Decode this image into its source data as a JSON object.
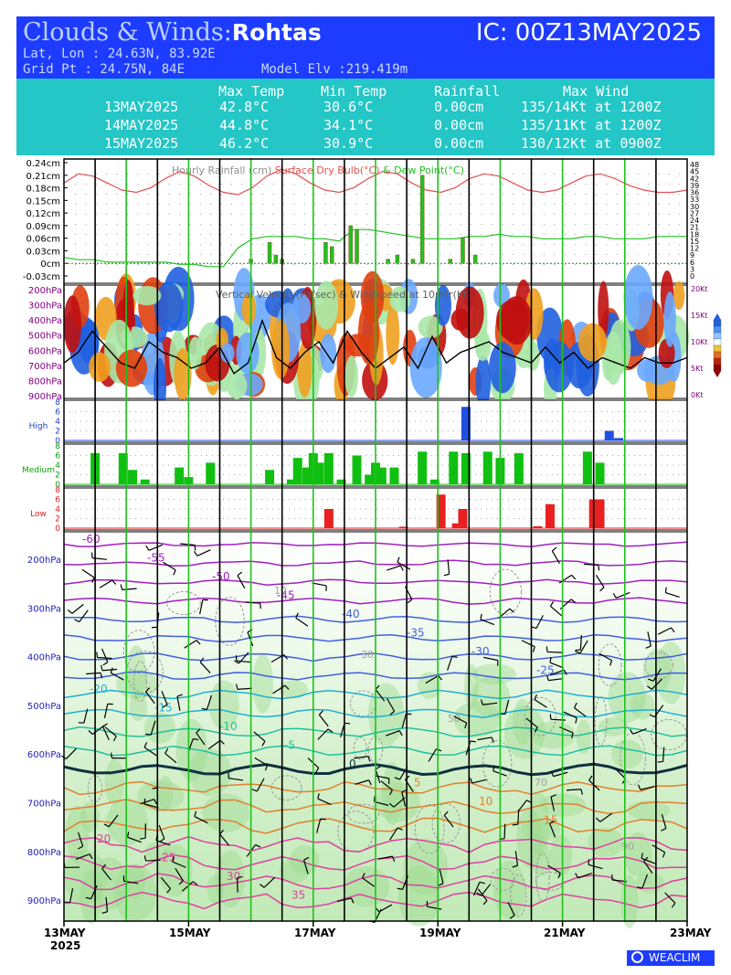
{
  "header": {
    "title_prefix": "Clouds & Winds:",
    "location": "Rohtas",
    "ic": "IC: 00Z13MAY2025",
    "latlon": "Lat, Lon : 24.63N, 83.92E",
    "gridpt": "Grid Pt  : 24.75N, 84E",
    "elevation": "Model Elv :219.419m"
  },
  "summary_table": {
    "headers": [
      "Max Temp",
      "Min Temp",
      "Rainfall",
      "Max Wind"
    ],
    "rows": [
      {
        "date": "13MAY2025",
        "max_temp": "42.8°C",
        "min_temp": "30.6°C",
        "rainfall": "0.00cm",
        "max_wind": "135/14Kt at 1200Z"
      },
      {
        "date": "14MAY2025",
        "max_temp": "44.8°C",
        "min_temp": "34.1°C",
        "rainfall": "0.00cm",
        "max_wind": "135/11Kt at 1200Z"
      },
      {
        "date": "15MAY2025",
        "max_temp": "46.2°C",
        "min_temp": "30.9°C",
        "rainfall": "0.00cm",
        "max_wind": "130/12Kt at 0900Z"
      }
    ]
  },
  "colors": {
    "header_bg": "#1e3cff",
    "table_bg": "#24c6c6",
    "temp": "#e05050",
    "dewpoint": "#20c020",
    "rain": "#20c020",
    "high": "#2050e0",
    "medium": "#10c010",
    "low": "#e82020",
    "day_line": "#000000",
    "noon_line": "#20c020",
    "accent_purple": "#9010c0"
  },
  "chart_data": [
    {
      "type": "line",
      "panel": "rainfall-temperature",
      "legend": [
        "Hourly Rainfall (cm)",
        "Surface Dry Bulb(°C)",
        "& Dew Point(°C)"
      ],
      "ylabel_ticks": [
        "0.24cm",
        "0.21cm",
        "0.18cm",
        "0.15cm",
        "0.12cm",
        "0.09cm",
        "0.06cm",
        "0.03cm",
        "0cm",
        "-0.03cm"
      ],
      "right_ticks": [
        "48",
        "45",
        "42",
        "39",
        "36",
        "33",
        "30",
        "27",
        "24",
        "21",
        "18",
        "15",
        "12",
        "9",
        "6",
        "3",
        "0"
      ],
      "y_range_cm": [
        -0.03,
        0.24
      ],
      "dry_bulb_c": [
        40,
        44,
        43,
        40,
        37,
        36,
        38,
        42,
        45,
        43,
        39,
        36,
        35,
        38,
        43,
        46,
        44,
        40,
        37,
        36,
        38,
        42,
        45,
        44,
        40,
        37,
        36,
        38,
        42,
        44,
        43,
        40,
        37,
        36,
        37,
        40,
        43,
        44,
        42,
        39,
        37,
        36,
        36,
        37
      ],
      "dew_point_c": [
        8,
        7,
        7,
        6,
        6,
        6,
        6,
        6,
        5,
        5,
        4,
        4,
        12,
        16,
        17,
        17,
        17,
        16,
        16,
        15,
        20,
        20,
        19,
        18,
        17,
        16,
        16,
        16,
        17,
        17,
        18,
        17,
        17,
        16,
        16,
        16,
        17,
        17,
        16,
        16,
        16,
        17,
        17,
        17
      ],
      "rain_days": [
        3,
        3.3,
        3.4,
        3.5,
        4.2,
        4.3,
        4.6,
        4.7,
        5.2,
        5.35,
        5.6,
        5.75,
        6.2,
        6.4,
        6.6
      ],
      "rain_cm": [
        0.01,
        0.05,
        0.02,
        0.01,
        0.05,
        0.04,
        0.09,
        0.08,
        0.01,
        0.02,
        0.01,
        0.21,
        0.01,
        0.06,
        0.02
      ]
    },
    {
      "type": "heatmap",
      "panel": "vertical-velocity",
      "title": "Vertical Velocity(Pa/sec) & Windspeed at 10mtr(Kt)",
      "ylabel_ticks": [
        "200hPa",
        "300hPa",
        "400hPa",
        "500hPa",
        "600hPa",
        "700hPa",
        "800hPa",
        "900hPa"
      ],
      "right_ticks": [
        "20Kt",
        "15Kt",
        "10Kt",
        "5Kt",
        "0Kt"
      ],
      "windspeed_kt": [
        6,
        8,
        12,
        9,
        6,
        5,
        10,
        8,
        7,
        5,
        6,
        9,
        4,
        6,
        14,
        7,
        5,
        8,
        10,
        6,
        12,
        8,
        5,
        7,
        9,
        5,
        11,
        6,
        8,
        9,
        10,
        8,
        7,
        6,
        9,
        6,
        8,
        5,
        7,
        6,
        5,
        7,
        6,
        6,
        7
      ]
    },
    {
      "type": "bar",
      "panel": "cloud-cover",
      "series": [
        {
          "name": "High",
          "ylabel_ticks": [
            "8",
            "6",
            "4",
            "2",
            "0"
          ],
          "days": [
            6.45,
            8.75,
            8.9
          ],
          "values": [
            7,
            2,
            0.5
          ]
        },
        {
          "name": "Medium",
          "ylabel_ticks": [
            "8",
            "6",
            "4",
            "2",
            "0"
          ],
          "days": [
            0.5,
            0.95,
            1.1,
            1.3,
            1.85,
            2.0,
            2.35,
            3.3,
            3.65,
            3.75,
            3.9,
            4.0,
            4.1,
            4.25,
            4.45,
            4.7,
            4.9,
            5.0,
            5.1,
            5.3,
            5.75,
            5.95,
            6.25,
            6.45,
            6.8,
            7.0,
            7.3,
            8.4,
            8.6
          ],
          "values": [
            6.5,
            6.5,
            3,
            1,
            3.5,
            1.5,
            4.5,
            3,
            1,
            5.5,
            3.5,
            6.5,
            4.5,
            6.5,
            1,
            6,
            2,
            4.5,
            3.5,
            3.5,
            6.8,
            1,
            6.8,
            6.5,
            6.8,
            5.5,
            6.5,
            6.8,
            4.5
          ]
        },
        {
          "name": "Low",
          "ylabel_ticks": [
            "8",
            "6",
            "4",
            "2",
            "0"
          ],
          "days": [
            4.25,
            5.45,
            6.05,
            6.3,
            6.4,
            7.6,
            7.8,
            8.5,
            8.6
          ],
          "values": [
            4,
            0.3,
            7,
            1,
            4,
            0.4,
            5,
            6,
            6
          ]
        }
      ]
    },
    {
      "type": "line",
      "panel": "temperature-humidity-wind-profile",
      "ylabel_ticks": [
        "200hPa",
        "300hPa",
        "400hPa",
        "500hPa",
        "600hPa",
        "700hPa",
        "800hPa",
        "900hPa"
      ],
      "isotherm_labels_c": [
        -60,
        -55,
        -50,
        -45,
        -40,
        -35,
        -30,
        -25,
        -20,
        -15,
        -10,
        -5,
        0,
        5,
        10,
        15,
        20,
        25,
        30,
        35
      ],
      "humidity_labels_pct": [
        10,
        30,
        50,
        70,
        90
      ]
    }
  ],
  "x_axis": {
    "labels": [
      "13MAY\n2025",
      "15MAY",
      "17MAY",
      "19MAY",
      "21MAY",
      "23MAY"
    ],
    "first": "13MAY",
    "first_year": "2025",
    "l2": "15MAY",
    "l3": "17MAY",
    "l4": "19MAY",
    "l5": "21MAY",
    "l6": "23MAY"
  },
  "logo": "WEACLIM"
}
